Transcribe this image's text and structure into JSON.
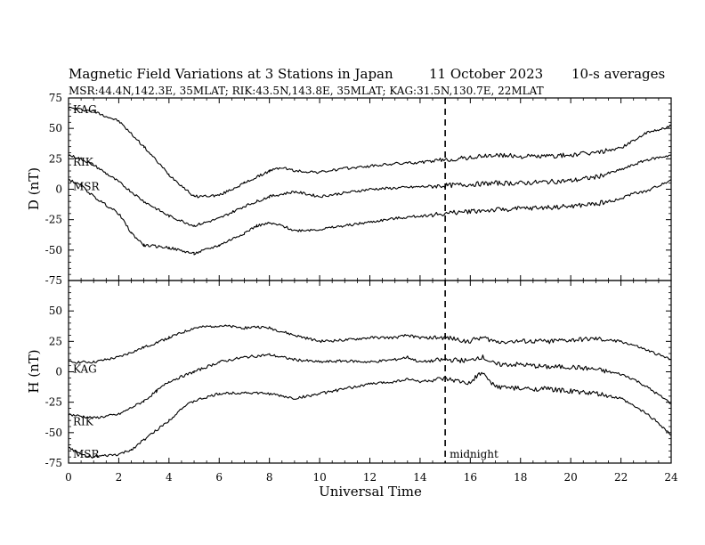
{
  "header": {
    "title": "Magnetic Field Variations at 3 Stations in Japan",
    "date": "11 October 2023",
    "averaging": "10-s averages",
    "stations_line": "MSR:44.4N,142.3E, 35MLAT;  RIK:43.5N,143.8E, 35MLAT;  KAG:31.5N,130.7E, 22MLAT"
  },
  "chart_data": [
    {
      "type": "line",
      "panel": "top",
      "ylabel": "D (nT)",
      "ylim": [
        -75,
        75
      ],
      "yticks": [
        75,
        50,
        25,
        0,
        -25,
        -50,
        -75
      ],
      "xlim": [
        0,
        24
      ],
      "xticks": [
        0,
        2,
        4,
        6,
        8,
        10,
        12,
        14,
        16,
        18,
        20,
        22,
        24
      ],
      "series": [
        {
          "name": "KAG",
          "x": [
            0,
            1,
            2,
            3,
            4,
            5,
            6,
            7,
            7.5,
            8,
            8.5,
            9,
            10,
            11,
            12,
            13,
            14,
            15,
            16,
            17,
            18,
            19,
            20,
            21,
            22,
            22.5,
            23,
            24
          ],
          "y": [
            67,
            64,
            56,
            35,
            12,
            -6,
            -5,
            5,
            10,
            15,
            18,
            15,
            14,
            17,
            19,
            21,
            22,
            24,
            26,
            28,
            27,
            27,
            28,
            30,
            34,
            40,
            46,
            52
          ]
        },
        {
          "name": "RIK",
          "x": [
            0,
            0.5,
            1,
            2,
            3,
            4,
            5,
            6,
            7,
            7.5,
            8,
            8.5,
            9,
            10,
            11,
            12,
            13,
            14,
            15,
            16,
            17,
            18,
            19,
            20,
            21,
            22,
            22.5,
            23,
            24
          ],
          "y": [
            28,
            25,
            20,
            6,
            -10,
            -22,
            -30,
            -24,
            -14,
            -10,
            -6,
            -4,
            -2,
            -6,
            -3,
            0,
            1,
            2,
            3,
            4,
            5,
            5,
            6,
            7,
            10,
            16,
            20,
            24,
            28
          ]
        },
        {
          "name": "MSR",
          "x": [
            0,
            0.5,
            1,
            2,
            2.5,
            3,
            4,
            5,
            6,
            7,
            7.5,
            8,
            8.5,
            9,
            10,
            11,
            12,
            13,
            14,
            15,
            16,
            17,
            18,
            19,
            20,
            21,
            22,
            22.5,
            23,
            24
          ],
          "y": [
            8,
            3,
            -6,
            -20,
            -36,
            -46,
            -48,
            -53,
            -46,
            -36,
            -30,
            -28,
            -30,
            -34,
            -33,
            -30,
            -27,
            -24,
            -22,
            -20,
            -18,
            -17,
            -16,
            -15,
            -14,
            -12,
            -8,
            -3,
            -2,
            8
          ]
        }
      ],
      "annotations": []
    },
    {
      "type": "line",
      "panel": "bottom",
      "ylabel": "H (nT)",
      "ylim": [
        -75,
        75
      ],
      "yticks": [
        50,
        25,
        0,
        -25,
        -50,
        -75
      ],
      "xlabel": "Universal Time",
      "xlim": [
        0,
        24
      ],
      "xticks": [
        0,
        2,
        4,
        6,
        8,
        10,
        12,
        14,
        16,
        18,
        20,
        22,
        24
      ],
      "series": [
        {
          "name": "KAG",
          "x": [
            0,
            1,
            2,
            3,
            4,
            5,
            6,
            7,
            7.5,
            8,
            9,
            10,
            11,
            12,
            13,
            13.5,
            14,
            15,
            16,
            16.3,
            16.5,
            17,
            18,
            19,
            20,
            21,
            22,
            22.5,
            23,
            24
          ],
          "y": [
            8,
            8,
            12,
            20,
            28,
            36,
            38,
            36,
            37,
            36,
            30,
            25,
            26,
            28,
            28,
            30,
            28,
            28,
            25,
            28,
            28,
            25,
            25,
            25,
            26,
            27,
            25,
            22,
            18,
            10
          ]
        },
        {
          "name": "RIK",
          "x": [
            0,
            1,
            2,
            3,
            3.5,
            4,
            5,
            6,
            7,
            8,
            8.5,
            9,
            10,
            11,
            12,
            13,
            13.5,
            14,
            15,
            16,
            16.3,
            16.5,
            17,
            18,
            19,
            20,
            21,
            22,
            22.5,
            23,
            24
          ],
          "y": [
            -35,
            -38,
            -35,
            -24,
            -16,
            -8,
            0,
            8,
            12,
            14,
            12,
            10,
            8,
            9,
            8,
            10,
            12,
            8,
            10,
            9,
            12,
            12,
            6,
            6,
            4,
            4,
            2,
            -2,
            -6,
            -12,
            -26
          ]
        },
        {
          "name": "MSR",
          "x": [
            0,
            0.5,
            1,
            1.5,
            2,
            2.5,
            3,
            4,
            4.5,
            5,
            6,
            7,
            8,
            8.5,
            9,
            10,
            11,
            12,
            13,
            13.5,
            14,
            15,
            16,
            16.3,
            16.5,
            17,
            18,
            19,
            20,
            21,
            22,
            22.5,
            23,
            23.5,
            24
          ],
          "y": [
            -62,
            -68,
            -70,
            -69,
            -68,
            -64,
            -56,
            -40,
            -30,
            -24,
            -18,
            -17,
            -18,
            -20,
            -22,
            -18,
            -14,
            -10,
            -8,
            -6,
            -8,
            -6,
            -10,
            -2,
            -2,
            -12,
            -14,
            -14,
            -16,
            -18,
            -22,
            -28,
            -34,
            -42,
            -52
          ]
        }
      ],
      "annotations": [
        {
          "text": "midnight",
          "x": 15
        }
      ]
    }
  ]
}
